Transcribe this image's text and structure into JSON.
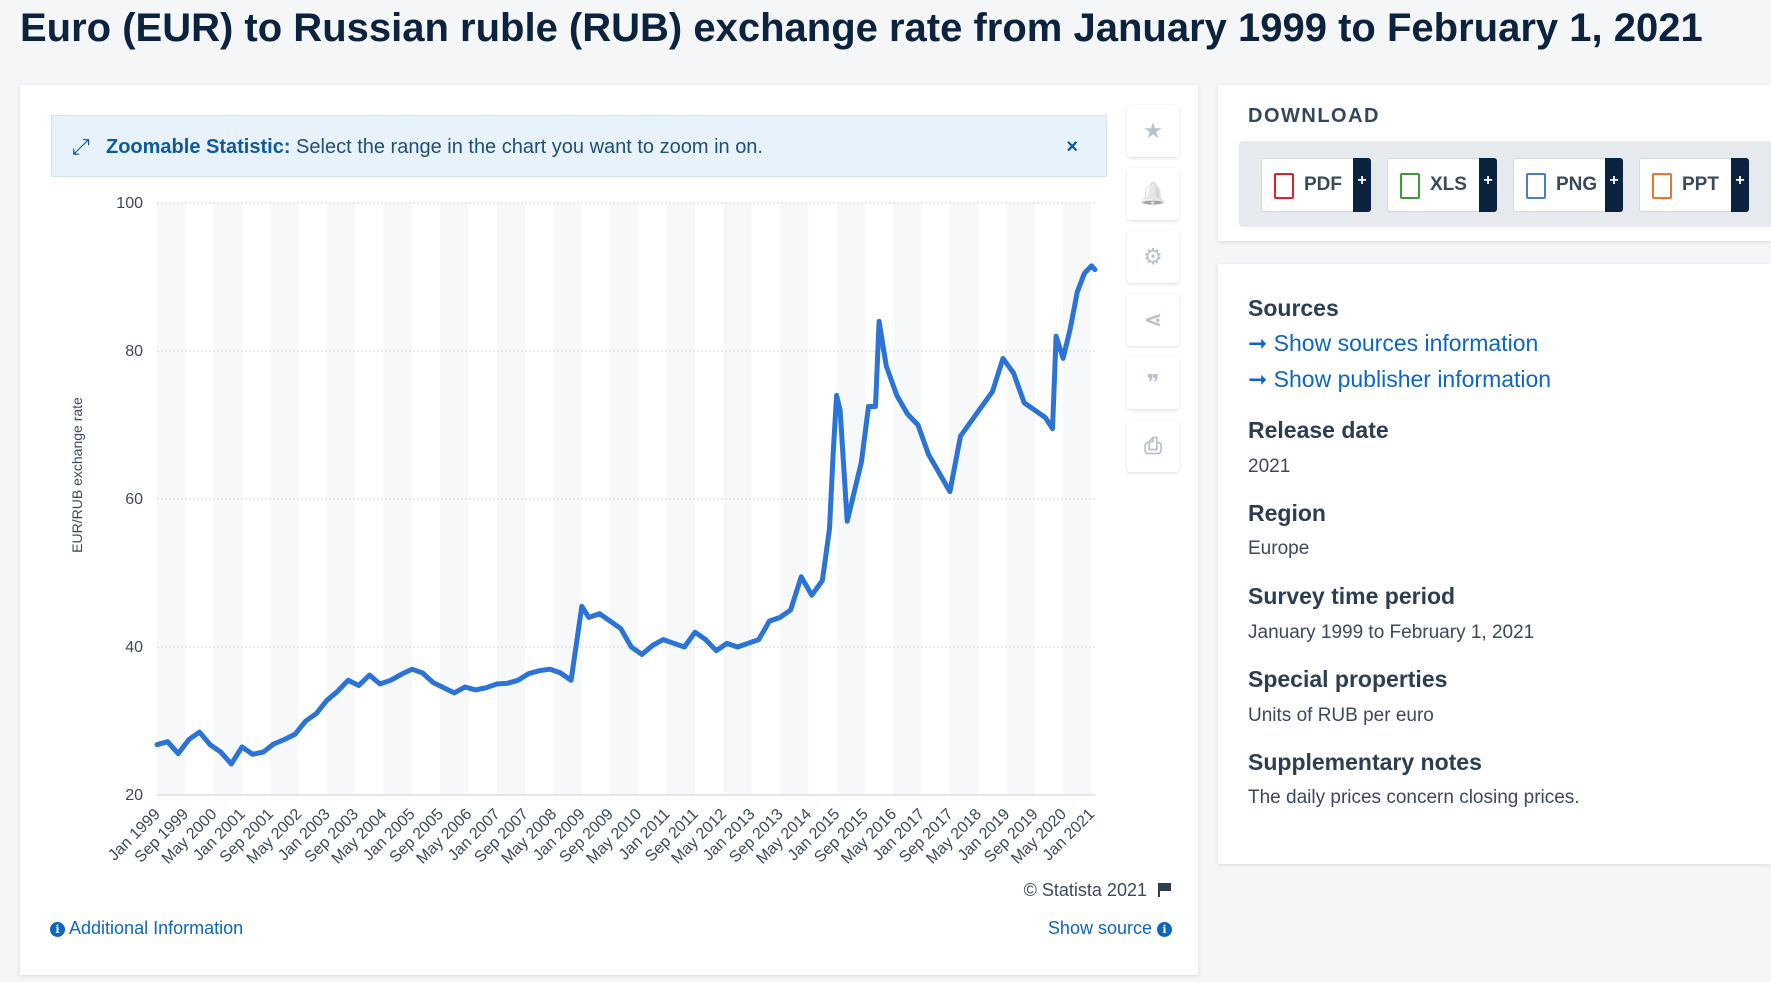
{
  "title": "Euro (EUR) to Russian ruble (RUB) exchange rate from January 1999 to February 1, 2021",
  "zoom_banner": {
    "strong": "Zoomable Statistic:",
    "text": "Select the range in the chart you want to zoom in on.",
    "close": "×"
  },
  "tools": [
    {
      "icon": "star-icon",
      "glyph": "★"
    },
    {
      "icon": "bell-icon",
      "glyph": "🔔"
    },
    {
      "icon": "gear-icon",
      "glyph": "⚙"
    },
    {
      "icon": "share-icon",
      "glyph": "⋖"
    },
    {
      "icon": "quote-icon",
      "glyph": "❞"
    },
    {
      "icon": "print-icon",
      "glyph": "⎙"
    }
  ],
  "copyright": "© Statista 2021",
  "footer": {
    "additional_info": "Additional Information",
    "show_source": "Show source"
  },
  "download": {
    "title": "DOWNLOAD",
    "buttons": [
      {
        "label": "PDF",
        "color": "#d7262b"
      },
      {
        "label": "XLS",
        "color": "#3f9b35"
      },
      {
        "label": "PNG",
        "color": "#4a7fc1"
      },
      {
        "label": "PPT",
        "color": "#e8762d"
      }
    ],
    "plus": "+"
  },
  "meta": {
    "sources_label": "Sources",
    "show_sources": "Show sources information",
    "show_publisher": "Show publisher information",
    "release_date_label": "Release date",
    "release_date": "2021",
    "region_label": "Region",
    "region": "Europe",
    "survey_label": "Survey time period",
    "survey": "January 1999 to February 1, 2021",
    "special_label": "Special properties",
    "special": "Units of RUB per euro",
    "notes_label": "Supplementary notes",
    "notes": "The daily prices concern closing prices."
  },
  "colors": {
    "line": "#2b73d6",
    "accent": "#0d66c2"
  },
  "chart_data": {
    "type": "line",
    "title": "",
    "xlabel": "",
    "ylabel": "EUR/RUB exchange rate",
    "ylim": [
      20,
      100
    ],
    "yticks": [
      20,
      40,
      60,
      80,
      100
    ],
    "grid": true,
    "x_ticks": [
      "Jan 1999",
      "Sep 1999",
      "May 2000",
      "Jan 2001",
      "Sep 2001",
      "May 2002",
      "Jan 2003",
      "Sep 2003",
      "May 2004",
      "Jan 2005",
      "Sep 2005",
      "May 2006",
      "Jan 2007",
      "Sep 2007",
      "May 2008",
      "Jan 2009",
      "Sep 2009",
      "May 2010",
      "Jan 2011",
      "Sep 2011",
      "May 2012",
      "Jan 2013",
      "Sep 2013",
      "May 2014",
      "Jan 2015",
      "Sep 2015",
      "May 2016",
      "Jan 2017",
      "Sep 2017",
      "May 2018",
      "Jan 2019",
      "Sep 2019",
      "May 2020",
      "Jan 2021"
    ],
    "series": [
      {
        "x": [
          "Jan 1999",
          "Apr 1999",
          "Jul 1999",
          "Oct 1999",
          "Jan 2000",
          "Apr 2000",
          "Jul 2000",
          "Oct 2000",
          "Jan 2001",
          "Apr 2001",
          "Jul 2001",
          "Oct 2001",
          "Jan 2002",
          "Apr 2002",
          "Jul 2002",
          "Oct 2002",
          "Jan 2003",
          "Apr 2003",
          "Jul 2003",
          "Oct 2003",
          "Jan 2004",
          "Apr 2004",
          "Jul 2004",
          "Oct 2004",
          "Jan 2005",
          "Apr 2005",
          "Jul 2005",
          "Oct 2005",
          "Jan 2006",
          "Apr 2006",
          "Jul 2006",
          "Oct 2006",
          "Jan 2007",
          "Apr 2007",
          "Jul 2007",
          "Oct 2007",
          "Jan 2008",
          "Apr 2008",
          "Jul 2008",
          "Oct 2008",
          "Jan 2009",
          "Mar 2009",
          "Jun 2009",
          "Sep 2009",
          "Dec 2009",
          "Mar 2010",
          "Jun 2010",
          "Sep 2010",
          "Dec 2010",
          "Mar 2011",
          "Jun 2011",
          "Sep 2011",
          "Dec 2011",
          "Mar 2012",
          "Jun 2012",
          "Sep 2012",
          "Dec 2012",
          "Mar 2013",
          "Jun 2013",
          "Sep 2013",
          "Dec 2013",
          "Mar 2014",
          "Jun 2014",
          "Sep 2014",
          "Nov 2014",
          "Dec 2014",
          "Jan 2015",
          "Feb 2015",
          "Apr 2015",
          "Jun 2015",
          "Aug 2015",
          "Oct 2015",
          "Dec 2015",
          "Jan 2016",
          "Mar 2016",
          "Jun 2016",
          "Sep 2016",
          "Dec 2016",
          "Mar 2017",
          "Jun 2017",
          "Sep 2017",
          "Dec 2017",
          "Mar 2018",
          "Jun 2018",
          "Sep 2018",
          "Dec 2018",
          "Mar 2019",
          "Jun 2019",
          "Sep 2019",
          "Dec 2019",
          "Feb 2020",
          "Mar 2020",
          "May 2020",
          "Jul 2020",
          "Sep 2020",
          "Nov 2020",
          "Jan 2021",
          "Feb 2021"
        ],
        "values": [
          26.8,
          27.2,
          25.6,
          27.5,
          28.5,
          26.8,
          25.8,
          24.2,
          26.5,
          25.5,
          25.8,
          26.9,
          27.5,
          28.2,
          30.0,
          31.0,
          32.8,
          34.0,
          35.5,
          34.8,
          36.2,
          35.0,
          35.5,
          36.3,
          37.0,
          36.5,
          35.2,
          34.5,
          33.8,
          34.6,
          34.2,
          34.5,
          35.0,
          35.1,
          35.5,
          36.4,
          36.8,
          37.0,
          36.5,
          35.5,
          45.5,
          44.0,
          44.5,
          43.5,
          42.5,
          40.0,
          39.0,
          40.2,
          41.0,
          40.5,
          40.0,
          42.0,
          41.0,
          39.5,
          40.5,
          40.0,
          40.5,
          41.0,
          43.5,
          44.0,
          45.0,
          49.5,
          47.0,
          49.0,
          56.0,
          66.0,
          74.0,
          72.0,
          57.0,
          61.0,
          65.0,
          72.5,
          72.5,
          84.0,
          78.0,
          74.0,
          71.5,
          70.0,
          66.0,
          63.5,
          61.0,
          68.5,
          70.5,
          72.5,
          74.5,
          79.0,
          77.0,
          73.0,
          72.0,
          71.0,
          69.5,
          82.0,
          79.0,
          83.0,
          88.0,
          90.5,
          91.5,
          91.0
        ]
      }
    ]
  }
}
